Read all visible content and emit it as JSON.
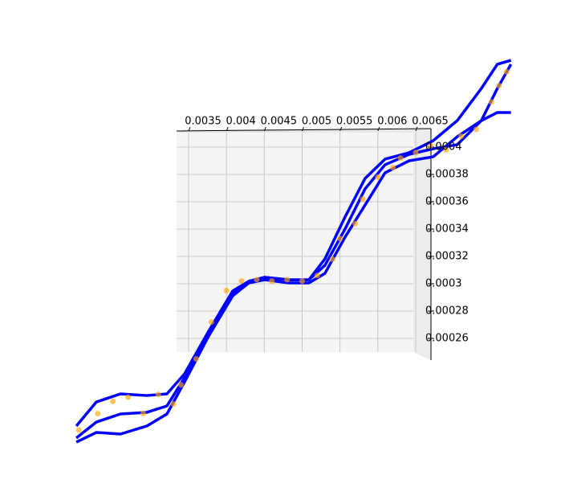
{
  "chart_data": {
    "type": "line3d",
    "xlim": [
      0.0035,
      0.0065
    ],
    "xticks": [
      0.0035,
      0.004,
      0.0045,
      0.005,
      0.0055,
      0.006,
      0.0065
    ],
    "ylim": [
      0.00026,
      0.0004
    ],
    "yticks": [
      0.00026,
      0.00028,
      0.0003,
      0.00032,
      0.00034,
      0.00036,
      0.00038,
      0.0004
    ],
    "grid": true,
    "x": [
      0.002017,
      0.002282,
      0.0026,
      0.002949,
      0.003214,
      0.003447,
      0.003765,
      0.004083,
      0.004294,
      0.004506,
      0.004824,
      0.005089,
      0.005301,
      0.005566,
      0.005831,
      0.006095,
      0.006413,
      0.006731,
      0.007049,
      0.007367,
      0.007578,
      0.007758
    ],
    "series": [
      {
        "color": "#0000ff",
        "values": [
          0.0001871,
          0.0001988,
          0.0002047,
          0.0002059,
          0.0002106,
          0.0002312,
          0.0002635,
          0.0002929,
          0.0003018,
          0.0003047,
          0.0003029,
          0.0003029,
          0.0003135,
          0.00034,
          0.0003694,
          0.0003871,
          0.0003947,
          0.0003988,
          0.0004018,
          0.0004194,
          0.0004429,
          0.0004606
        ]
      },
      {
        "color": "#0000ff",
        "values": [
          0.0001959,
          0.0002135,
          0.0002194,
          0.0002182,
          0.0002194,
          0.0002341,
          0.0002653,
          0.0002947,
          0.0003018,
          0.0003047,
          0.0003029,
          0.0003029,
          0.0003182,
          0.0003488,
          0.0003771,
          0.0003912,
          0.0003959,
          0.0004047,
          0.0004194,
          0.0004429,
          0.0004606,
          0.0004635
        ]
      },
      {
        "color": "#0000ff",
        "values": [
          0.0001841,
          0.0001912,
          0.00019,
          0.0001959,
          0.0002047,
          0.0002282,
          0.0002618,
          0.0002912,
          0.0003006,
          0.0003029,
          0.0003006,
          0.0003006,
          0.0003076,
          0.0003341,
          0.0003576,
          0.0003812,
          0.00039,
          0.0003929,
          0.0004076,
          0.0004194,
          0.0004253,
          0.0004253
        ]
      }
    ],
    "scatter": {
      "color": "#ffa500",
      "x": [
        0.00205,
        0.0023,
        0.0025,
        0.0027,
        0.0029,
        0.0031,
        0.0033,
        0.0034,
        0.0036,
        0.0038,
        0.004,
        0.0042,
        0.0044,
        0.0046,
        0.0048,
        0.005,
        0.0052,
        0.0054,
        0.0055,
        0.0057,
        0.0058,
        0.006,
        0.0062,
        0.0063,
        0.0065,
        0.0067,
        0.0069,
        0.0071,
        0.0073,
        0.0075,
        0.0076,
        0.0077
      ],
      "y": [
        0.000193,
        0.000205,
        0.000214,
        0.000217,
        0.000205,
        0.000219,
        0.000212,
        0.000226,
        0.000245,
        0.000272,
        0.000295,
        0.000302,
        0.000303,
        0.000302,
        0.000303,
        0.000302,
        0.000306,
        0.000318,
        0.000333,
        0.000344,
        0.000362,
        0.000378,
        0.000385,
        0.000392,
        0.000396,
        0.000401,
        0.000398,
        0.000408,
        0.000413,
        0.000433,
        0.000445,
        0.000455
      ]
    }
  }
}
